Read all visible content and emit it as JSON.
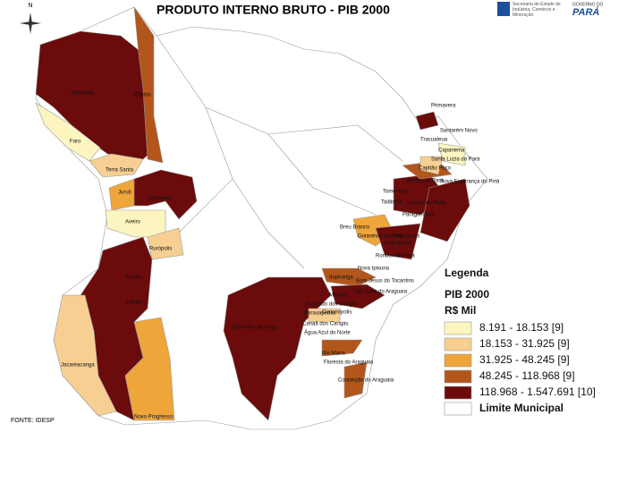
{
  "header": {
    "title": "PRODUTO INTERNO BRUTO - PIB 2000",
    "compass": "N",
    "logo_text": "Secretaria de Estado de Indústria, Comércio e Mineração",
    "logo_brand_top": "GOVERNO DO",
    "logo_brand": "PARÁ"
  },
  "source": "FONTE: IDESP",
  "legend": {
    "title": "Legenda",
    "subtitle": "PIB 2000",
    "unit": "R$ Mil",
    "items": [
      {
        "label": "8.191 - 18.153 [9]",
        "color": "#fdf5c0"
      },
      {
        "label": "18.153 - 31.925 [9]",
        "color": "#f8cf92"
      },
      {
        "label": "31.925 - 48.245 [9]",
        "color": "#eea53a"
      },
      {
        "label": "48.245 - 118.968 [9]",
        "color": "#b3561c"
      },
      {
        "label": "118.968 - 1.547.691 [10]",
        "color": "#6b0b0b"
      },
      {
        "label": "Limite Municipal",
        "color": "#ffffff"
      }
    ]
  },
  "map": {
    "labels": [
      "Oriximiná",
      "Óbidos",
      "Faro",
      "Terra Santa",
      "Juruti",
      "Santarém",
      "Aveiro",
      "Rurópolis",
      "Trairão",
      "Itaituba",
      "Jacareacanga",
      "Novo Progresso",
      "São Félix do Xingu",
      "Parauapebas",
      "Canaã dos Carajás",
      "Curionópolis",
      "Eldorado dos Carajás",
      "Água Azul do Norte",
      "Rio Maria",
      "Floresta do Araguaia",
      "Conceição do Araguaia",
      "Marabá",
      "São João do Araguaia",
      "Itupiranga",
      "Nova Ipixuna",
      "Bom Jesus do Tocantins",
      "Breu Branco",
      "Goianésia do Pará",
      "Dom Eliseu",
      "Rondon do Pará",
      "Ulianópolis",
      "Paragominas",
      "Tomé-Açu",
      "Tailândia",
      "Ipixuna do Pará",
      "Aurora do Pará",
      "Nova Esperança do Piriá",
      "Capitão Poço",
      "Santa Luzia do Pará",
      "Capanema",
      "Primavera",
      "Tracuateua",
      "Santarém Novo"
    ]
  }
}
